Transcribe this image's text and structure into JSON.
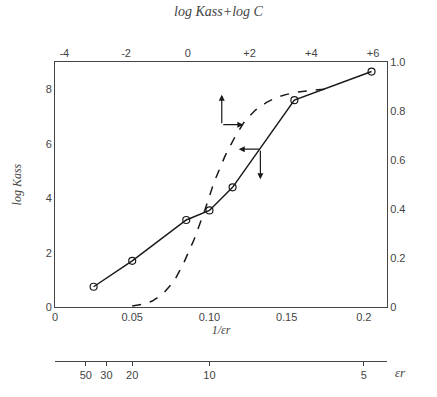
{
  "chart_data": {
    "type": "line",
    "title": "log Kass+log C",
    "ylabel": "log Kass",
    "xlabel": "1/εr",
    "x3label": "εr",
    "grid": false,
    "series": [
      {
        "x": [
          0.025,
          0.05,
          0.085,
          0.1,
          0.115,
          0.155,
          0.205
        ],
        "values": [
          0.75,
          1.7,
          3.2,
          3.55,
          4.4,
          7.6,
          8.65
        ],
        "color": "#1a1a1a",
        "marker": "circle-open",
        "line_style": "solid"
      },
      {
        "x": [
          0.05,
          0.057,
          0.063,
          0.07,
          0.077,
          0.083,
          0.09,
          0.097,
          0.103,
          0.11,
          0.117,
          0.123,
          0.13,
          0.137,
          0.143,
          0.15,
          0.157,
          0.163,
          0.17,
          0.177
        ],
        "values": [
          0.005,
          0.012,
          0.025,
          0.055,
          0.105,
          0.175,
          0.275,
          0.395,
          0.51,
          0.615,
          0.7,
          0.76,
          0.805,
          0.835,
          0.855,
          0.868,
          0.877,
          0.883,
          0.887,
          0.89
        ],
        "color": "#1a1a1a",
        "line_style": "dashed",
        "axis": "y2"
      }
    ],
    "xlim": [
      0.0,
      0.215
    ],
    "xticks": [
      0,
      0.05,
      {
        "value": 0.1,
        "label": "0.10"
      },
      0.15,
      0.2
    ],
    "ylim": [
      0,
      9.0
    ],
    "yticks": [
      0,
      2,
      4,
      6,
      8
    ],
    "y2lim": [
      0,
      1.0
    ],
    "y2ticks": [
      0,
      0.2,
      0.4,
      0.6,
      0.8,
      {
        "value": 1.0,
        "label": "1.0"
      }
    ],
    "x2lim": [
      -4.3,
      6.45
    ],
    "x2ticks": [
      -4,
      -2,
      0,
      {
        "value": 2,
        "label": "+2"
      },
      {
        "value": 4,
        "label": "+4"
      },
      {
        "value": 6,
        "label": "+6"
      }
    ],
    "x3ticks": [
      {
        "value": 0.02,
        "label": "50"
      },
      {
        "value": 0.0333,
        "label": "30"
      },
      {
        "value": 0.05,
        "label": "20"
      },
      {
        "value": 0.1,
        "label": "10"
      },
      {
        "value": 0.2,
        "label": "5"
      }
    ],
    "annotations": [
      {
        "ax": 0.108,
        "ay": 6.7,
        "x": 0.108,
        "y": 7.8,
        "color": "#1a1a1a"
      },
      {
        "ax": 0.108,
        "ay": 6.7,
        "x": 0.122,
        "y": 6.7,
        "color": "#1a1a1a"
      },
      {
        "ax": 0.133,
        "ay": 5.8,
        "x": 0.119,
        "y": 5.8,
        "color": "#1a1a1a"
      },
      {
        "ax": 0.133,
        "ay": 5.8,
        "x": 0.133,
        "y": 4.7,
        "color": "#1a1a1a"
      }
    ]
  }
}
